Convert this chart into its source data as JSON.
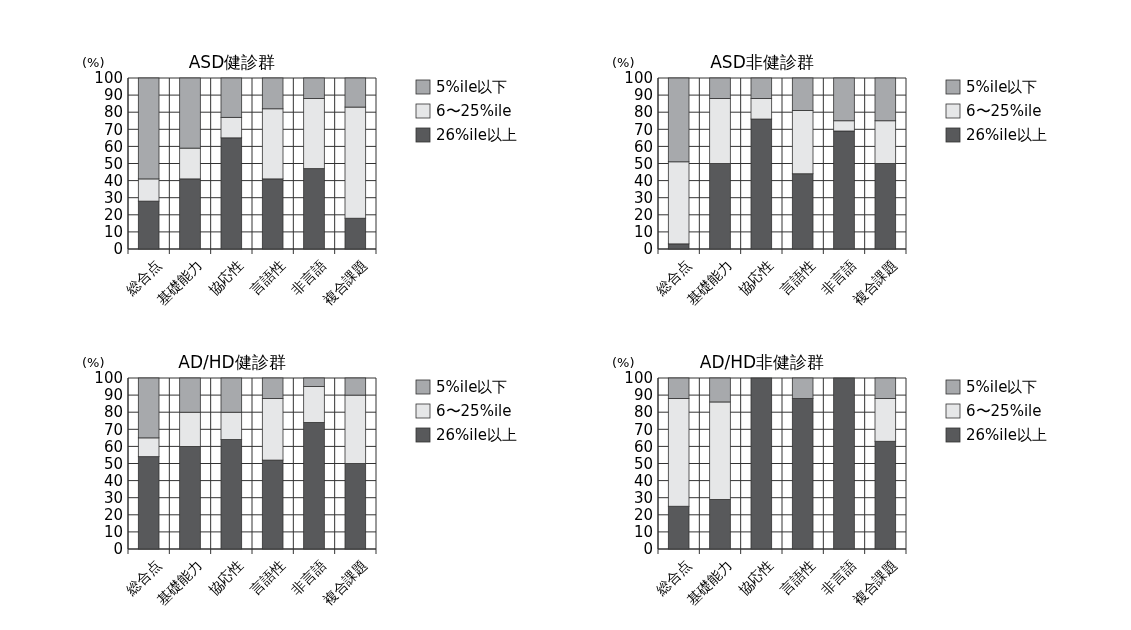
{
  "chart_data": [
    {
      "type": "bar",
      "title": "ASD健診群",
      "ylabel": "(%)",
      "categories": [
        "総合点",
        "基礎能力",
        "協応性",
        "言語性",
        "非言語",
        "複合課題"
      ],
      "stacked": true,
      "ylim": [
        0,
        100
      ],
      "yticks": [
        0,
        10,
        20,
        30,
        40,
        50,
        60,
        70,
        80,
        90,
        100
      ],
      "grid": true,
      "legend": "right",
      "series": [
        {
          "name": "26%ile以上",
          "color": "#58595b",
          "values": [
            28,
            41,
            65,
            41,
            47,
            18
          ]
        },
        {
          "name": "6〜25%ile",
          "color": "#e6e7e8",
          "values": [
            13,
            18,
            12,
            41,
            41,
            65
          ]
        },
        {
          "name": "5%ile以下",
          "color": "#a7a9ac",
          "values": [
            59,
            41,
            23,
            18,
            12,
            17
          ]
        }
      ]
    },
    {
      "type": "bar",
      "title": "ASD非健診群",
      "ylabel": "(%)",
      "categories": [
        "総合点",
        "基礎能力",
        "協応性",
        "言語性",
        "非言語",
        "複合課題"
      ],
      "stacked": true,
      "ylim": [
        0,
        100
      ],
      "yticks": [
        0,
        10,
        20,
        30,
        40,
        50,
        60,
        70,
        80,
        90,
        100
      ],
      "grid": true,
      "legend": "right",
      "series": [
        {
          "name": "26%ile以上",
          "color": "#58595b",
          "values": [
            3,
            50,
            76,
            44,
            69,
            50
          ]
        },
        {
          "name": "6〜25%ile",
          "color": "#e6e7e8",
          "values": [
            48,
            38,
            12,
            37,
            6,
            25
          ]
        },
        {
          "name": "5%ile以下",
          "color": "#a7a9ac",
          "values": [
            49,
            12,
            12,
            19,
            25,
            25
          ]
        }
      ]
    },
    {
      "type": "bar",
      "title": "AD/HD健診群",
      "ylabel": "(%)",
      "categories": [
        "総合点",
        "基礎能力",
        "協応性",
        "言語性",
        "非言語",
        "複合課題"
      ],
      "stacked": true,
      "ylim": [
        0,
        100
      ],
      "yticks": [
        0,
        10,
        20,
        30,
        40,
        50,
        60,
        70,
        80,
        90,
        100
      ],
      "grid": true,
      "legend": "right",
      "series": [
        {
          "name": "26%ile以上",
          "color": "#58595b",
          "values": [
            54,
            60,
            64,
            52,
            74,
            50
          ]
        },
        {
          "name": "6〜25%ile",
          "color": "#e6e7e8",
          "values": [
            11,
            20,
            16,
            36,
            21,
            40
          ]
        },
        {
          "name": "5%ile以下",
          "color": "#a7a9ac",
          "values": [
            35,
            20,
            20,
            12,
            5,
            10
          ]
        }
      ]
    },
    {
      "type": "bar",
      "title": "AD/HD非健診群",
      "ylabel": "(%)",
      "categories": [
        "総合点",
        "基礎能力",
        "協応性",
        "言語性",
        "非言語",
        "複合課題"
      ],
      "stacked": true,
      "ylim": [
        0,
        100
      ],
      "yticks": [
        0,
        10,
        20,
        30,
        40,
        50,
        60,
        70,
        80,
        90,
        100
      ],
      "grid": true,
      "legend": "right",
      "series": [
        {
          "name": "26%ile以上",
          "color": "#58595b",
          "values": [
            25,
            29,
            100,
            88,
            100,
            63
          ]
        },
        {
          "name": "6〜25%ile",
          "color": "#e6e7e8",
          "values": [
            63,
            57,
            0,
            0,
            0,
            25
          ]
        },
        {
          "name": "5%ile以下",
          "color": "#a7a9ac",
          "values": [
            12,
            14,
            0,
            12,
            0,
            12
          ]
        }
      ]
    }
  ]
}
